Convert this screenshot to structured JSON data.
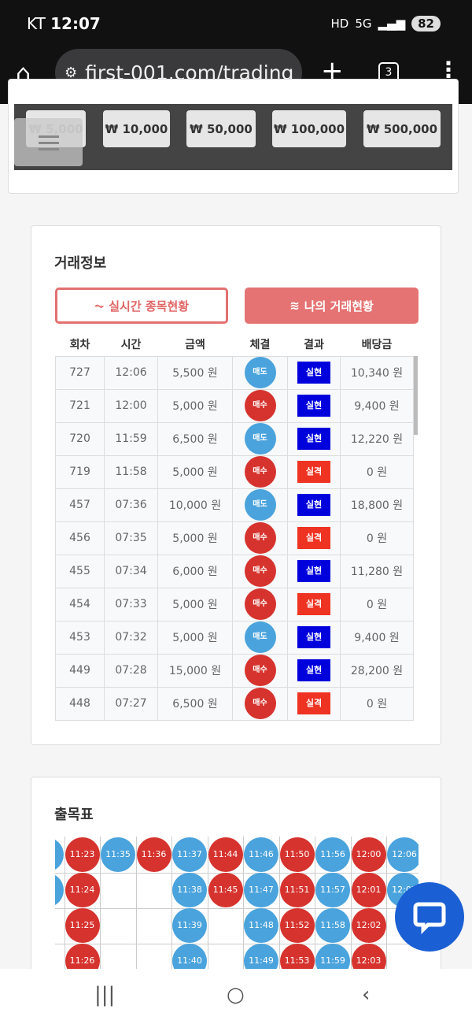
{
  "status": {
    "carrier": "KT",
    "time": "12:07",
    "icons": [
      "hd",
      "5g",
      "signal"
    ],
    "battery": "82"
  },
  "browser": {
    "url": "first-001.com/trading",
    "tab_count": "3"
  },
  "amounts": [
    "₩ 5,000",
    "₩ 10,000",
    "₩ 50,000",
    "₩ 100,000",
    "₩ 500,000"
  ],
  "trade": {
    "title": "거래정보",
    "btn_realtime": "실시간 종목현황",
    "btn_mine": "나의 거래현황",
    "headers": [
      "회차",
      "시간",
      "금액",
      "체결",
      "결과",
      "배당금"
    ],
    "rows": [
      [
        "727",
        "12:06",
        "5,500 원",
        "매도",
        "실현",
        "10,340 원"
      ],
      [
        "721",
        "12:00",
        "5,000 원",
        "매수",
        "실현",
        "9,400 원"
      ],
      [
        "720",
        "11:59",
        "6,500 원",
        "매도",
        "실현",
        "12,220 원"
      ],
      [
        "719",
        "11:58",
        "5,000 원",
        "매수",
        "실격",
        "0 원"
      ],
      [
        "457",
        "07:36",
        "10,000 원",
        "매도",
        "실현",
        "18,800 원"
      ],
      [
        "456",
        "07:35",
        "5,000 원",
        "매수",
        "실격",
        "0 원"
      ],
      [
        "455",
        "07:34",
        "6,000 원",
        "매수",
        "실현",
        "11,280 원"
      ],
      [
        "454",
        "07:33",
        "5,000 원",
        "매수",
        "실격",
        "0 원"
      ],
      [
        "453",
        "07:32",
        "5,000 원",
        "매도",
        "실현",
        "9,400 원"
      ],
      [
        "449",
        "07:28",
        "15,000 원",
        "매수",
        "실현",
        "28,200 원"
      ],
      [
        "448",
        "07:27",
        "6,500 원",
        "매수",
        "실격",
        "0 원"
      ]
    ]
  },
  "colors": {
    "sell": "#4aa3dc",
    "buy": "#d6332e",
    "win": "#0000dd",
    "lose": "#ee3322"
  },
  "chart_table": {
    "title": "출목표",
    "columns": [
      {
        "color": "blue",
        "times": [
          "",
          ""
        ]
      },
      {
        "color": "red",
        "times": [
          "11:23",
          "11:24",
          "11:25",
          "11:26"
        ]
      },
      {
        "color": "blue",
        "times": [
          "11:35"
        ]
      },
      {
        "color": "red",
        "times": [
          "11:36"
        ]
      },
      {
        "color": "blue",
        "times": [
          "11:37",
          "11:38",
          "11:39",
          "11:40"
        ]
      },
      {
        "color": "red",
        "times": [
          "11:44",
          "11:45"
        ]
      },
      {
        "color": "blue",
        "times": [
          "11:46",
          "11:47",
          "11:48",
          "11:49"
        ]
      },
      {
        "color": "red",
        "times": [
          "11:50",
          "11:51",
          "11:52",
          "11:53"
        ]
      },
      {
        "color": "blue",
        "times": [
          "11:56",
          "11:57",
          "11:58",
          "11:59"
        ]
      },
      {
        "color": "red",
        "times": [
          "12:00",
          "12:01",
          "12:02",
          "12:03"
        ]
      },
      {
        "color": "blue",
        "times": [
          "12:06",
          "12:07"
        ]
      }
    ]
  }
}
